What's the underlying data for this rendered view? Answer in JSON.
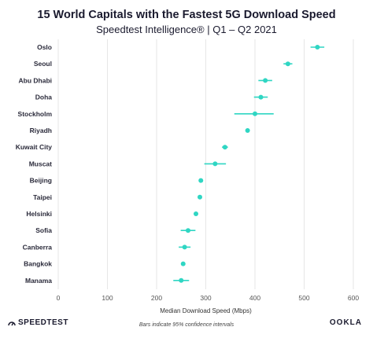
{
  "header": {
    "title": "15 World Capitals with the Fastest 5G Download Speed",
    "subtitle": "Speedtest Intelligence® | Q1 – Q2 2021"
  },
  "footer": {
    "note": "Bars indicate 95% confidence intervals",
    "left_logo": "SPEEDTEST",
    "right_logo": "OOKLA"
  },
  "colors": {
    "marker": "#2fd6c3",
    "grid": "#e6e6e6",
    "text": "#1a1a2e"
  },
  "chart_data": {
    "type": "scatter",
    "orientation": "horizontal",
    "title": "15 World Capitals with the Fastest 5G Download Speed",
    "subtitle": "Speedtest Intelligence® | Q1 – Q2 2021",
    "xlabel": "Median Download Speed (Mbps)",
    "ylabel": "",
    "xlim": [
      0,
      600
    ],
    "xticks": [
      0,
      100,
      200,
      300,
      400,
      500,
      600
    ],
    "grid": true,
    "categories": [
      "Oslo",
      "Seoul",
      "Abu Dhabi",
      "Doha",
      "Stockholm",
      "Riyadh",
      "Kuwait City",
      "Muscat",
      "Beijing",
      "Taipei",
      "Helsinki",
      "Sofia",
      "Canberra",
      "Bangkok",
      "Manama"
    ],
    "values": [
      527,
      467,
      421,
      412,
      400,
      385,
      339,
      319,
      290,
      288,
      280,
      264,
      257,
      254,
      250
    ],
    "ci_low": [
      513,
      458,
      407,
      398,
      358,
      382,
      333,
      297,
      287,
      285,
      277,
      249,
      245,
      251,
      234
    ],
    "ci_high": [
      541,
      476,
      435,
      426,
      438,
      388,
      345,
      341,
      293,
      291,
      283,
      279,
      269,
      257,
      266
    ],
    "annotations": [
      "Bars indicate 95% confidence intervals"
    ]
  }
}
